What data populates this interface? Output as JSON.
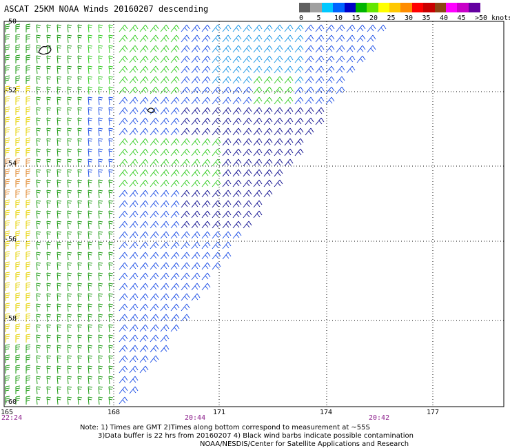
{
  "title": "ASCAT 25KM NOAA Winds 20160207 descending",
  "legend": {
    "labels": [
      "0",
      "5",
      "10",
      "15",
      "20",
      "25",
      "30",
      "35",
      "40",
      "45",
      ">50 knots"
    ],
    "colors": [
      "#606060",
      "#a0a0a0",
      "#00c8ff",
      "#0064ff",
      "#0000c8",
      "#00b400",
      "#64e600",
      "#ffff00",
      "#ffc800",
      "#ff8c00",
      "#ff0000",
      "#c80000",
      "#8b4513",
      "#ff00ff",
      "#c800c8",
      "#6400a0"
    ]
  },
  "map": {
    "lat_labels": [
      "-50",
      "-52",
      "-54",
      "-56",
      "-58",
      "-60"
    ],
    "lon_labels": [
      "165",
      "168",
      "171",
      "174",
      "177"
    ],
    "time_labels": [
      "22:24",
      "20:44",
      "20:42"
    ],
    "lat_range": [
      -60,
      -50
    ],
    "lon_range": [
      165,
      177
    ],
    "islands": [
      {
        "name": "auckland-islands-outline",
        "lon": 166.1,
        "lat": -50.7
      },
      {
        "name": "campbell-island-outline",
        "lon": 169.2,
        "lat": -52.5
      }
    ]
  },
  "notes": {
    "line1": "Note: 1) Times are GMT 2)Times along bottom correspond to measurement at ~55S",
    "line2": "3)Data buffer is 22 hrs from 20160207 4) Black wind barbs indicate possible contamination",
    "line3": "NOAA/NESDIS/Center for Satellite Applications and Research"
  }
}
